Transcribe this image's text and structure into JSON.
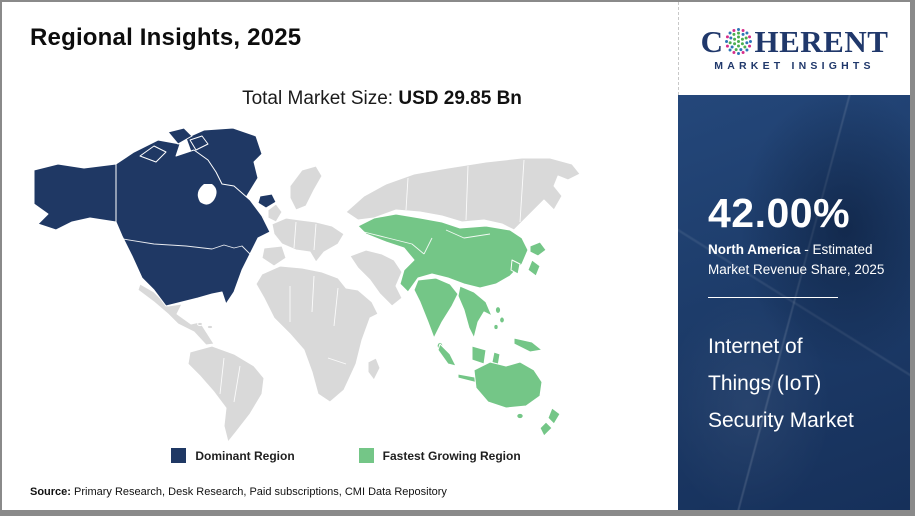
{
  "page": {
    "title": "Regional Insights, 2025"
  },
  "subtitle": {
    "label": "Total Market Size: ",
    "value": "USD 29.85 Bn"
  },
  "legend": {
    "items": [
      {
        "label": "Dominant Region",
        "color": "#1F3864"
      },
      {
        "label": "Fastest Growing Region",
        "color": "#74C687"
      }
    ]
  },
  "source": {
    "label": "Source:",
    "text": " Primary Research, Desk Research, Paid subscriptions, CMI Data Repository"
  },
  "sidebar": {
    "share_value": "42.00%",
    "share_region": "North America",
    "share_desc": " - Estimated Market Revenue Share, 2025",
    "market_name": "Internet of Things (IoT) Security Market"
  },
  "logo": {
    "brand_first_letter": "C",
    "brand_rest": "HERENT",
    "tagline": "MARKET INSIGHTS"
  },
  "map": {
    "dominant_region": "North America",
    "fastest_growing_region": "Asia Pacific",
    "regions": [
      {
        "name": "North America",
        "status": "dominant",
        "color": "#1F3864"
      },
      {
        "name": "Asia Pacific",
        "status": "fastest-growing",
        "color": "#74C687"
      },
      {
        "name": "Rest of World",
        "status": "neutral",
        "color": "#D9D9D9"
      }
    ]
  },
  "colors": {
    "dominant": "#1F3864",
    "growing": "#74C687",
    "land": "#D9D9D9",
    "sidebar_bg": "#1D3C6A",
    "brand_navy": "#20386B",
    "globe_green": "#4CAF50",
    "globe_blue": "#2E75B6",
    "globe_pink": "#D62E8C"
  }
}
